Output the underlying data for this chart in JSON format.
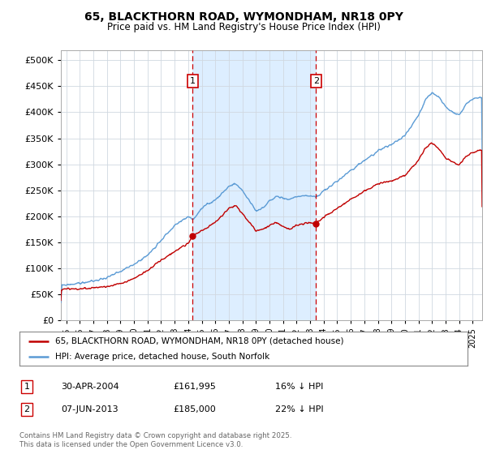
{
  "title": "65, BLACKTHORN ROAD, WYMONDHAM, NR18 0PY",
  "subtitle": "Price paid vs. HM Land Registry's House Price Index (HPI)",
  "bg_color": "#ffffff",
  "plot_bg_color": "#ffffff",
  "plot_bg_band_color": "#ddeeff",
  "legend_line1": "65, BLACKTHORN ROAD, WYMONDHAM, NR18 0PY (detached house)",
  "legend_line2": "HPI: Average price, detached house, South Norfolk",
  "marker1_date": "30-APR-2004",
  "marker1_price": "£161,995",
  "marker1_hpi": "16% ↓ HPI",
  "marker1_x": 2004.33,
  "marker1_y": 161995,
  "marker2_date": "07-JUN-2013",
  "marker2_price": "£185,000",
  "marker2_hpi": "22% ↓ HPI",
  "marker2_x": 2013.44,
  "marker2_y": 185000,
  "footer": "Contains HM Land Registry data © Crown copyright and database right 2025.\nThis data is licensed under the Open Government Licence v3.0.",
  "hpi_color": "#5b9bd5",
  "price_color": "#c00000",
  "marker_color": "#cc0000",
  "ylim": [
    0,
    520000
  ],
  "xlim_start": 1994.6,
  "xlim_end": 2025.7,
  "yticks": [
    0,
    50000,
    100000,
    150000,
    200000,
    250000,
    300000,
    350000,
    400000,
    450000,
    500000
  ],
  "xticks": [
    1995,
    1996,
    1997,
    1998,
    1999,
    2000,
    2001,
    2002,
    2003,
    2004,
    2005,
    2006,
    2007,
    2008,
    2009,
    2010,
    2011,
    2012,
    2013,
    2014,
    2015,
    2016,
    2017,
    2018,
    2019,
    2020,
    2021,
    2022,
    2023,
    2024,
    2025
  ]
}
